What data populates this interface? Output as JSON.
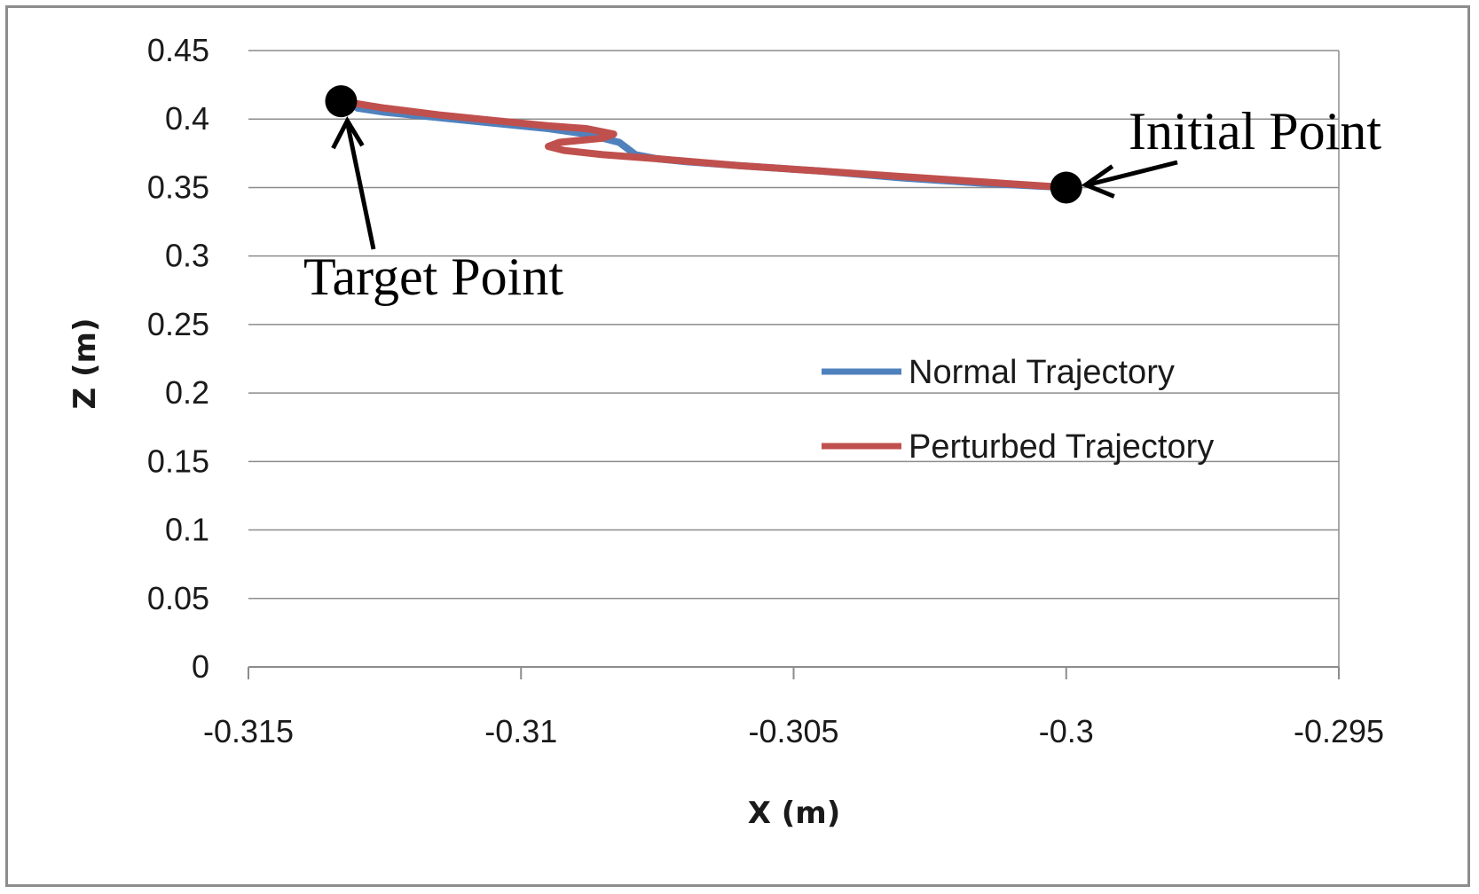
{
  "chart_data": {
    "type": "line",
    "xlabel": "X (m)",
    "ylabel": "Z (m)",
    "xlim": [
      -0.315,
      -0.295
    ],
    "ylim": [
      0,
      0.45
    ],
    "x_ticks": [
      -0.315,
      -0.31,
      -0.305,
      -0.3,
      -0.295
    ],
    "x_tick_labels": [
      "-0.315",
      "-0.31",
      "-0.305",
      "-0.3",
      "-0.295"
    ],
    "y_ticks": [
      0,
      0.05,
      0.1,
      0.15,
      0.2,
      0.25,
      0.3,
      0.35,
      0.4,
      0.45
    ],
    "y_tick_labels": [
      "0",
      "0.05",
      "0.1",
      "0.15",
      "0.2",
      "0.25",
      "0.3",
      "0.35",
      "0.4",
      "0.45"
    ],
    "grid": "horizontal",
    "legend_position": "center-right",
    "series": [
      {
        "name": "Normal Trajectory",
        "color": "#4f81bd",
        "x": [
          -0.3,
          -0.3015,
          -0.303,
          -0.3045,
          -0.306,
          -0.307,
          -0.3075,
          -0.3079,
          -0.308,
          -0.3082,
          -0.3088,
          -0.3095,
          -0.3105,
          -0.3115,
          -0.3125,
          -0.313
        ],
        "y": [
          0.35,
          0.353,
          0.357,
          0.362,
          0.366,
          0.369,
          0.371,
          0.374,
          0.377,
          0.383,
          0.389,
          0.393,
          0.397,
          0.401,
          0.405,
          0.408
        ]
      },
      {
        "name": "Perturbed Trajectory",
        "color": "#c0504d",
        "x": [
          -0.3,
          -0.3015,
          -0.303,
          -0.3045,
          -0.306,
          -0.3075,
          -0.3085,
          -0.3092,
          -0.3095,
          -0.3093,
          -0.3085,
          -0.3083,
          -0.3088,
          -0.3095,
          -0.3105,
          -0.3115,
          -0.3125,
          -0.3133
        ],
        "y": [
          0.35,
          0.354,
          0.358,
          0.362,
          0.366,
          0.371,
          0.374,
          0.377,
          0.38,
          0.383,
          0.386,
          0.389,
          0.393,
          0.395,
          0.399,
          0.403,
          0.408,
          0.413
        ]
      }
    ],
    "annotations": [
      {
        "text": "Initial Point",
        "x": -0.3,
        "y": 0.35
      },
      {
        "text": "Target Point",
        "x": -0.3133,
        "y": 0.413
      }
    ]
  },
  "marker_color": "#000000",
  "gridline_color": "#8c8c8c"
}
